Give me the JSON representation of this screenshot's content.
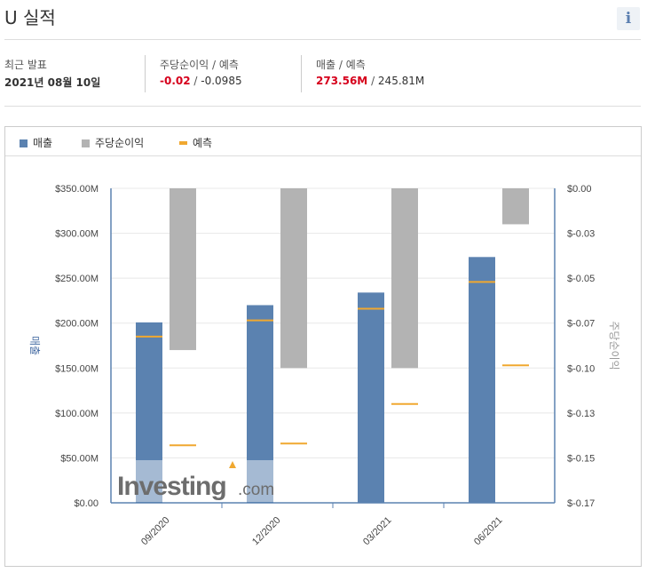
{
  "header": {
    "title": "U 실적",
    "info_icon": "info-icon",
    "info_glyph": "i"
  },
  "summary": {
    "latest": {
      "label": "최근 발표",
      "value": "2021년 08월 10일"
    },
    "eps": {
      "label": "주당순이익 / 예측",
      "actual": "-0.02",
      "separator": " / ",
      "forecast": "-0.0985"
    },
    "revenue": {
      "label": "매출 / 예측",
      "actual": "273.56M",
      "separator": " / ",
      "forecast": "245.81M"
    }
  },
  "colors": {
    "revenue": "#5b82b0",
    "revenue_light": "#a9bedb",
    "eps": "#b3b3b3",
    "forecast": "#f0a830",
    "negative": "#d6001c",
    "grid": "#e8e8e8",
    "axis": "#5b82b0"
  },
  "legend": [
    {
      "label": "매출",
      "color": "#5b82b0",
      "kind": "square"
    },
    {
      "label": "주당순이익",
      "color": "#b3b3b3",
      "kind": "square"
    },
    {
      "label": "예측",
      "color": "#f0a830",
      "kind": "line"
    }
  ],
  "watermark": {
    "brand": "Investing",
    "suffix": ".com"
  },
  "chart_data": {
    "type": "bar",
    "categories": [
      "09/2020",
      "12/2020",
      "03/2021",
      "06/2021"
    ],
    "left_axis": {
      "title": "매출",
      "range": [
        0,
        350000000
      ],
      "ticks": [
        0,
        50000000,
        100000000,
        150000000,
        200000000,
        250000000,
        300000000,
        350000000
      ],
      "tick_labels": [
        "$0.00",
        "$50.00M",
        "$100.00M",
        "$150.00M",
        "$200.00M",
        "$250.00M",
        "$300.00M",
        "$350.00M"
      ]
    },
    "right_axis": {
      "title": "주당순이익",
      "range": [
        -0.175,
        0
      ],
      "ticks": [
        0,
        -0.025,
        -0.05,
        -0.075,
        -0.1,
        -0.125,
        -0.15,
        -0.175
      ],
      "tick_labels": [
        "$0.00",
        "$-0.03",
        "$-0.05",
        "$-0.07",
        "$-0.10",
        "$-0.13",
        "$-0.15",
        "$-0.17"
      ]
    },
    "series": [
      {
        "name": "매출",
        "axis": "left",
        "kind": "bar",
        "values": [
          200800000,
          220000000,
          234000000,
          273560000
        ]
      },
      {
        "name": "매출 예측",
        "axis": "left",
        "kind": "marker",
        "values": [
          185000000,
          203000000,
          216000000,
          245810000
        ]
      },
      {
        "name": "주당순이익",
        "axis": "right",
        "kind": "bar",
        "values": [
          -0.09,
          -0.1,
          -0.1,
          -0.02
        ]
      },
      {
        "name": "주당순이익 예측",
        "axis": "right",
        "kind": "marker",
        "values": [
          -0.143,
          -0.142,
          -0.12,
          -0.0985
        ]
      }
    ],
    "grid": true,
    "legend_position": "top-left"
  }
}
